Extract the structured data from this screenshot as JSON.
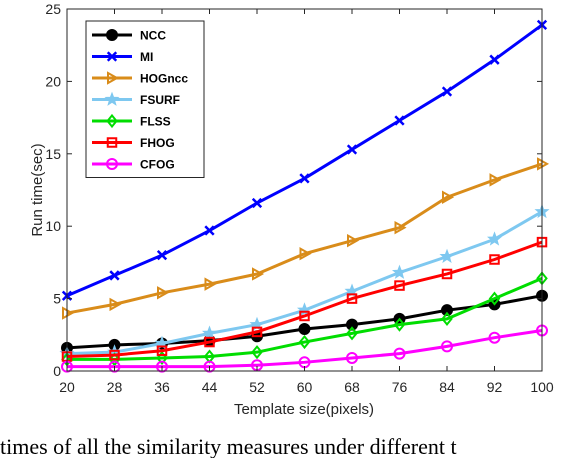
{
  "chart_data": {
    "type": "line",
    "title": "",
    "xlabel": "Template size(pixels)",
    "ylabel": "Run time(sec)",
    "x": [
      20,
      28,
      36,
      44,
      52,
      60,
      68,
      76,
      84,
      92,
      100
    ],
    "xticks": [
      "20",
      "28",
      "36",
      "44",
      "52",
      "60",
      "68",
      "76",
      "84",
      "92",
      "100"
    ],
    "yticks": [
      "0",
      "5",
      "10",
      "15",
      "20",
      "25"
    ],
    "xlim": [
      20,
      100
    ],
    "ylim": [
      0,
      25
    ],
    "grid": false,
    "legend_position": "top-left",
    "series": [
      {
        "name": "NCC",
        "color": "#000000",
        "marker": "filled-circle",
        "values": [
          1.6,
          1.8,
          1.9,
          2.1,
          2.4,
          2.9,
          3.2,
          3.6,
          4.2,
          4.6,
          5.2
        ]
      },
      {
        "name": "MI",
        "color": "#0000ff",
        "marker": "x",
        "values": [
          5.2,
          6.6,
          8.0,
          9.7,
          11.6,
          13.3,
          15.3,
          17.3,
          19.3,
          21.5,
          23.9
        ]
      },
      {
        "name": "HOGncc",
        "color": "#d98c1a",
        "marker": "triangle-right",
        "values": [
          4.0,
          4.6,
          5.4,
          6.0,
          6.7,
          8.1,
          9.0,
          9.9,
          12.0,
          13.2,
          14.3
        ]
      },
      {
        "name": "FSURF",
        "color": "#7ec8f0",
        "marker": "star",
        "values": [
          1.2,
          1.3,
          1.9,
          2.6,
          3.2,
          4.2,
          5.5,
          6.8,
          7.9,
          9.1,
          11.0
        ]
      },
      {
        "name": "FLSS",
        "color": "#00dd00",
        "marker": "diamond",
        "values": [
          0.8,
          0.8,
          0.9,
          1.0,
          1.3,
          2.0,
          2.6,
          3.2,
          3.6,
          5.0,
          6.4
        ]
      },
      {
        "name": "FHOG",
        "color": "#ff0000",
        "marker": "square",
        "values": [
          1.0,
          1.1,
          1.4,
          2.0,
          2.7,
          3.8,
          5.0,
          5.9,
          6.7,
          7.7,
          8.9
        ]
      },
      {
        "name": "CFOG",
        "color": "#ff00ff",
        "marker": "circle",
        "values": [
          0.3,
          0.3,
          0.3,
          0.3,
          0.4,
          0.6,
          0.9,
          1.2,
          1.7,
          2.3,
          2.8
        ]
      }
    ]
  },
  "caption_text": "times of all the similarity measures under different t"
}
